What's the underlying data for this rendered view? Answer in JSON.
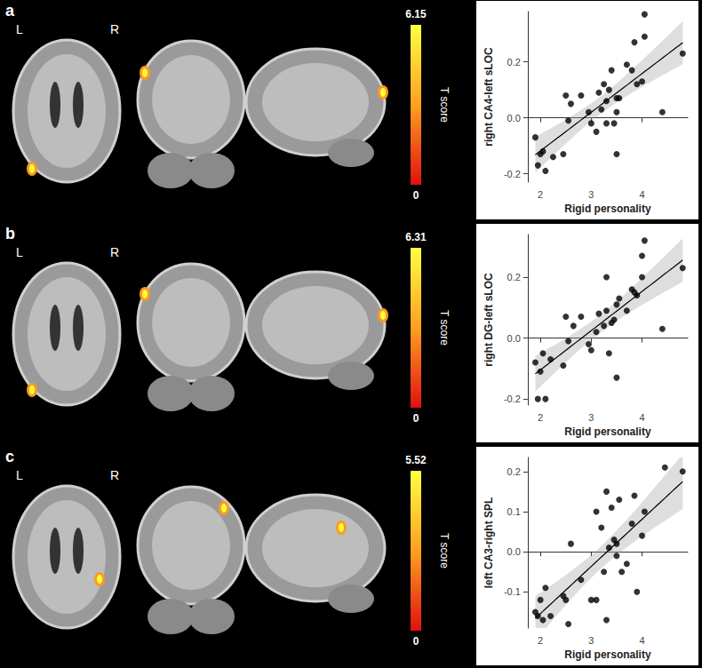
{
  "chart_data": [
    {
      "type": "scatter",
      "title": "a",
      "xlabel": "Rigid personality",
      "ylabel": "right CA4-left sLOC",
      "x": [
        1.9,
        1.95,
        2.0,
        2.05,
        2.1,
        2.25,
        2.45,
        2.5,
        2.55,
        2.6,
        2.8,
        2.95,
        3.0,
        3.1,
        3.15,
        3.2,
        3.25,
        3.3,
        3.3,
        3.35,
        3.4,
        3.45,
        3.5,
        3.5,
        3.5,
        3.55,
        3.7,
        3.8,
        3.85,
        3.9,
        4.0,
        4.05,
        4.05,
        4.4,
        4.8
      ],
      "y": [
        -0.07,
        -0.17,
        -0.13,
        -0.12,
        -0.19,
        -0.14,
        -0.13,
        0.08,
        -0.01,
        0.05,
        0.08,
        0.02,
        -0.02,
        -0.05,
        0.09,
        0.03,
        0.12,
        0.06,
        -0.02,
        0.1,
        0.17,
        -0.02,
        0.07,
        0.02,
        -0.13,
        0.07,
        0.19,
        0.17,
        0.27,
        0.12,
        0.13,
        0.37,
        0.29,
        0.02,
        0.23
      ],
      "xlim": [
        1.75,
        4.9
      ],
      "xticks": [
        2,
        3,
        4
      ],
      "ylim": [
        -0.23,
        0.38
      ],
      "yticks": [
        -0.2,
        {
          "value": 0,
          "label": "0.0"
        },
        0.2
      ],
      "grid": false,
      "color": "#000000",
      "annotations": [
        "L",
        "R"
      ],
      "colorbar": {
        "label": "T score",
        "range": [
          0,
          6.15
        ],
        "ticks": [
          0,
          6.15
        ]
      }
    },
    {
      "type": "scatter",
      "title": "b",
      "xlabel": "Rigid personality",
      "ylabel": "right DG-left sLOC",
      "x": [
        1.9,
        1.95,
        2.0,
        2.05,
        2.1,
        2.2,
        2.45,
        2.5,
        2.55,
        2.65,
        2.8,
        2.95,
        3.0,
        3.1,
        3.15,
        3.25,
        3.3,
        3.3,
        3.35,
        3.4,
        3.45,
        3.5,
        3.5,
        3.55,
        3.7,
        3.8,
        3.85,
        3.9,
        4.0,
        4.0,
        4.05,
        4.4,
        4.8
      ],
      "y": [
        -0.08,
        -0.2,
        -0.11,
        -0.05,
        -0.2,
        -0.07,
        -0.09,
        0.07,
        -0.01,
        0.04,
        0.07,
        -0.02,
        -0.04,
        0.02,
        0.08,
        0.04,
        0.2,
        0.09,
        -0.05,
        0.05,
        0.06,
        -0.13,
        0.11,
        0.13,
        0.09,
        0.16,
        0.15,
        0.14,
        0.27,
        0.2,
        0.32,
        0.03,
        0.23
      ],
      "xlim": [
        1.75,
        4.9
      ],
      "xticks": [
        2,
        3,
        4
      ],
      "ylim": [
        -0.22,
        0.34
      ],
      "yticks": [
        -0.2,
        {
          "value": 0,
          "label": "0.0"
        },
        0.2
      ],
      "grid": false,
      "color": "#000000",
      "annotations": [
        "L",
        "R"
      ],
      "colorbar": {
        "label": "T score",
        "range": [
          0,
          6.31
        ],
        "ticks": [
          0,
          6.31
        ]
      }
    },
    {
      "type": "scatter",
      "title": "c",
      "xlabel": "Rigid personality",
      "ylabel": "left CA3-right SPL",
      "x": [
        1.9,
        1.95,
        2.0,
        2.05,
        2.1,
        2.2,
        2.45,
        2.5,
        2.55,
        2.6,
        2.8,
        3.0,
        3.1,
        3.1,
        3.2,
        3.25,
        3.3,
        3.3,
        3.35,
        3.4,
        3.45,
        3.5,
        3.5,
        3.55,
        3.6,
        3.7,
        3.8,
        3.85,
        3.9,
        4.0,
        4.05,
        4.45,
        4.8
      ],
      "y": [
        -0.15,
        -0.16,
        -0.12,
        -0.17,
        -0.09,
        -0.16,
        -0.11,
        -0.12,
        -0.18,
        0.02,
        -0.07,
        -0.12,
        -0.12,
        0.1,
        0.06,
        -0.05,
        0.15,
        -0.17,
        0.01,
        0.11,
        0.03,
        0.02,
        -0.01,
        0.13,
        -0.05,
        -0.03,
        0.07,
        0.14,
        -0.1,
        0.04,
        0.1,
        0.21,
        0.2
      ],
      "xlim": [
        1.75,
        4.9
      ],
      "xticks": [
        2,
        3,
        4
      ],
      "ylim": [
        -0.19,
        0.235
      ],
      "yticks": [
        -0.1,
        {
          "value": 0,
          "label": "0.0"
        },
        0.1,
        0.2
      ],
      "grid": false,
      "color": "#000000",
      "annotations": [
        "L",
        "R"
      ],
      "colorbar": {
        "label": "T score",
        "range": [
          0,
          5.52
        ],
        "ticks": [
          0,
          5.52
        ]
      }
    }
  ]
}
